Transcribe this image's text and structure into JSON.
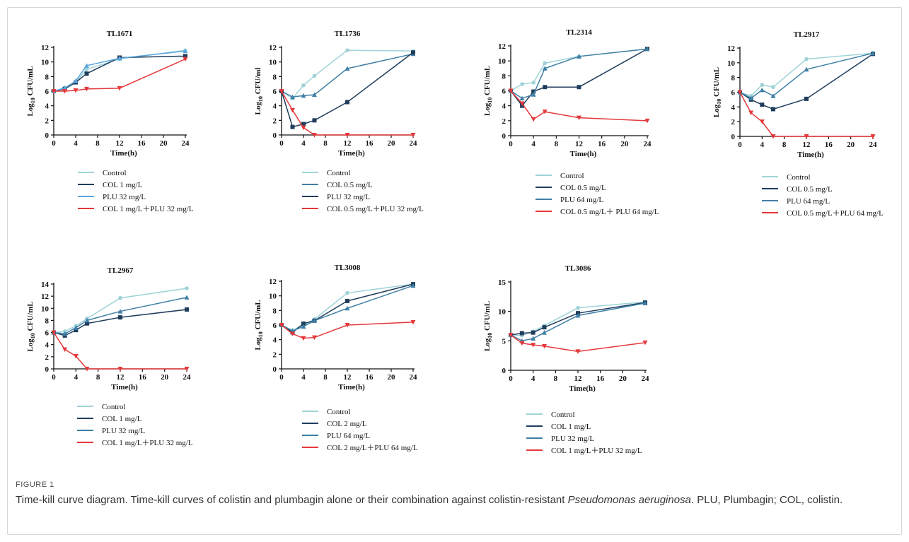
{
  "figure": {
    "label": "FIGURE 1",
    "caption_start": "Time-kill curve diagram. Time-kill curves of colistin and plumbagin alone or their combination against colistin-resistant ",
    "caption_italic": "Pseudomonas aeruginosa",
    "caption_end": ". PLU, Plumbagin; COL, colistin."
  },
  "colors": {
    "control": "#9fd3d8",
    "navy": "#1f3d5c",
    "steel": "#3f7fa6",
    "light_blue": "#5aa6dc",
    "combo": "#e4383b"
  },
  "chart_data": [
    {
      "type": "line",
      "title": "TL1671",
      "xlabel": "Time(h)",
      "ylabel": "Log10 CFU/mL",
      "xlim": [
        0,
        24
      ],
      "xticks": [
        0,
        4,
        8,
        12,
        16,
        20,
        24
      ],
      "ylim": [
        0,
        12
      ],
      "yticks": [
        0,
        2,
        4,
        6,
        8,
        10,
        12
      ],
      "x": [
        0,
        2,
        4,
        6,
        12,
        24
      ],
      "series": [
        {
          "name": "Control",
          "color": "#9fd3d8",
          "marker": "circle",
          "values": [
            6.0,
            6.5,
            7.2,
            9.0,
            10.4,
            11.6
          ]
        },
        {
          "name": "COL 1 mg/L",
          "color": "#1f3d5c",
          "marker": "square",
          "values": [
            6.0,
            6.3,
            7.2,
            8.4,
            10.6,
            10.8
          ]
        },
        {
          "name": "PLU  32 mg/L",
          "color": "#5aa6dc",
          "marker": "triangle",
          "values": [
            6.0,
            6.4,
            7.4,
            9.5,
            10.5,
            11.5
          ]
        },
        {
          "name": "COL 1 mg/L＋PLU 32 mg/L",
          "color": "#e4383b",
          "marker": "triangle-down",
          "values": [
            6.0,
            6.0,
            6.1,
            6.3,
            6.4,
            10.4
          ]
        }
      ],
      "legend": "below"
    },
    {
      "type": "line",
      "title": "TL1736",
      "xlabel": "Time(h)",
      "ylabel": "Log10 CFU/ml",
      "xlim": [
        0,
        24
      ],
      "xticks": [
        0,
        4,
        8,
        12,
        16,
        20,
        24
      ],
      "ylim": [
        0,
        12
      ],
      "yticks": [
        0,
        2,
        4,
        6,
        8,
        10,
        12
      ],
      "x": [
        0,
        2,
        4,
        6,
        12,
        24
      ],
      "series": [
        {
          "name": "Control",
          "color": "#9fd3d8",
          "marker": "circle",
          "values": [
            6.0,
            5.0,
            6.8,
            8.1,
            11.6,
            11.5
          ]
        },
        {
          "name": "COL 0.5 mg/L",
          "color": "#3f7fa6",
          "marker": "triangle",
          "values": [
            6.0,
            5.2,
            5.4,
            5.5,
            9.1,
            11.1
          ]
        },
        {
          "name": "PLU 32 mg/L",
          "color": "#1f3d5c",
          "marker": "square",
          "values": [
            6.0,
            1.1,
            1.5,
            2.0,
            4.5,
            11.3
          ]
        },
        {
          "name": "COL 0.5 mg/L＋PLU 32 mg/L",
          "color": "#e4383b",
          "marker": "triangle-down",
          "values": [
            6.0,
            3.4,
            1.0,
            0.0,
            0.0,
            0.0
          ]
        }
      ],
      "legend": "below"
    },
    {
      "type": "line",
      "title": "TL2314",
      "xlabel": "Time(h)",
      "ylabel": "Log10 CFU/mL",
      "xlim": [
        0,
        24
      ],
      "xticks": [
        0,
        4,
        8,
        12,
        16,
        20,
        24
      ],
      "ylim": [
        0,
        12
      ],
      "yticks": [
        0,
        2,
        4,
        6,
        8,
        10,
        12
      ],
      "x": [
        0,
        2,
        4,
        6,
        12,
        24
      ],
      "series": [
        {
          "name": "Control",
          "color": "#9fd3d8",
          "marker": "circle",
          "values": [
            6.0,
            6.9,
            7.1,
            9.7,
            10.6,
            11.6
          ]
        },
        {
          "name": "COL 0.5 mg/L",
          "color": "#1f3d5c",
          "marker": "square",
          "values": [
            6.0,
            4.0,
            5.9,
            6.5,
            6.5,
            11.6
          ]
        },
        {
          "name": "PLU 64 mg/L",
          "color": "#3f7fa6",
          "marker": "triangle",
          "values": [
            6.0,
            5.0,
            5.5,
            9.0,
            10.6,
            11.6
          ]
        },
        {
          "name": "COL 0.5 mg/L＋ PLU 64 mg/L",
          "color": "#e4383b",
          "marker": "triangle-down",
          "values": [
            6.0,
            4.3,
            2.2,
            3.2,
            2.4,
            2.0
          ]
        }
      ],
      "legend": "below"
    },
    {
      "type": "line",
      "title": "TL2917",
      "xlabel": "Time(h)",
      "ylabel": "Log10 CFU/mL",
      "xlim": [
        0,
        24
      ],
      "xticks": [
        0,
        4,
        8,
        12,
        16,
        20,
        24
      ],
      "ylim": [
        0,
        12
      ],
      "yticks": [
        0,
        2,
        4,
        6,
        8,
        10,
        12
      ],
      "x": [
        0,
        2,
        4,
        6,
        12,
        24
      ],
      "series": [
        {
          "name": "Control",
          "color": "#9fd3d8",
          "marker": "circle",
          "values": [
            6.0,
            5.5,
            7.0,
            6.7,
            10.5,
            11.3
          ]
        },
        {
          "name": "COL 0.5 mg/L",
          "color": "#1f3d5c",
          "marker": "square",
          "values": [
            6.0,
            5.0,
            4.3,
            3.7,
            5.1,
            11.2
          ]
        },
        {
          "name": "PLU 64 mg/L",
          "color": "#3f7fa6",
          "marker": "triangle",
          "values": [
            6.0,
            5.2,
            6.3,
            5.5,
            9.1,
            11.3
          ]
        },
        {
          "name": "COL 0.5 mg/L＋PLU 64 mg/L",
          "color": "#e4383b",
          "marker": "triangle-down",
          "values": [
            6.0,
            3.2,
            2.0,
            0.0,
            0.0,
            0.0
          ]
        }
      ],
      "legend": "below"
    },
    {
      "type": "line",
      "title": "TL2967",
      "xlabel": "Time(h)",
      "ylabel": "Log10 CFU/mL",
      "xlim": [
        0,
        24
      ],
      "xticks": [
        0,
        4,
        8,
        12,
        16,
        20,
        24
      ],
      "ylim": [
        0,
        14
      ],
      "yticks": [
        0,
        2,
        4,
        6,
        8,
        10,
        12,
        14
      ],
      "x": [
        0,
        2,
        4,
        6,
        12,
        24
      ],
      "series": [
        {
          "name": "Control",
          "color": "#9fd3d8",
          "marker": "circle",
          "values": [
            6.0,
            6.2,
            7.1,
            8.3,
            11.7,
            13.3
          ]
        },
        {
          "name": "COL 1 mg/L",
          "color": "#1f3d5c",
          "marker": "square",
          "values": [
            6.0,
            5.5,
            6.4,
            7.5,
            8.5,
            9.8
          ]
        },
        {
          "name": "PLU 32 mg/L",
          "color": "#3f7fa6",
          "marker": "triangle",
          "values": [
            6.0,
            5.8,
            6.8,
            8.0,
            9.5,
            11.8
          ]
        },
        {
          "name": "COL 1 mg/L＋PLU 32 mg/L",
          "color": "#e4383b",
          "marker": "triangle-down",
          "values": [
            6.0,
            3.2,
            2.1,
            0.0,
            0.0,
            0.0
          ]
        }
      ],
      "legend": "below"
    },
    {
      "type": "line",
      "title": "TL3008",
      "xlabel": "Time(h)",
      "ylabel": "Log10 CFU/mL",
      "xlim": [
        0,
        24
      ],
      "xticks": [
        0,
        4,
        8,
        12,
        16,
        20,
        24
      ],
      "ylim": [
        0,
        12
      ],
      "yticks": [
        0,
        2,
        4,
        6,
        8,
        10,
        12
      ],
      "x": [
        0,
        2,
        4,
        6,
        12,
        24
      ],
      "series": [
        {
          "name": "Control",
          "color": "#9fd3d8",
          "marker": "circle",
          "values": [
            6.0,
            5.3,
            6.0,
            6.8,
            10.4,
            11.6
          ]
        },
        {
          "name": "COL 2 mg/L",
          "color": "#1f3d5c",
          "marker": "square",
          "values": [
            6.0,
            5.0,
            6.2,
            6.6,
            9.3,
            11.6
          ]
        },
        {
          "name": "PLU 64 mg/L",
          "color": "#3f7fa6",
          "marker": "triangle",
          "values": [
            6.0,
            5.2,
            5.8,
            6.6,
            8.3,
            11.4
          ]
        },
        {
          "name": "COL 2 mg/L＋PLU 64 mg/L",
          "color": "#e4383b",
          "marker": "triangle-down",
          "values": [
            6.0,
            4.8,
            4.2,
            4.3,
            6.0,
            6.4
          ]
        }
      ],
      "legend": "below"
    },
    {
      "type": "line",
      "title": "TL3086",
      "xlabel": "Time(h)",
      "ylabel": "Log10 CFU/mL",
      "xlim": [
        0,
        24
      ],
      "xticks": [
        0,
        4,
        8,
        12,
        16,
        20,
        24
      ],
      "ylim": [
        0,
        15
      ],
      "yticks": [
        0,
        5,
        10,
        15
      ],
      "x": [
        0,
        2,
        4,
        6,
        12,
        24
      ],
      "series": [
        {
          "name": "Control",
          "color": "#9fd3d8",
          "marker": "circle",
          "values": [
            6.0,
            5.9,
            6.6,
            7.6,
            10.6,
            11.6
          ]
        },
        {
          "name": "COL 1 mg/L",
          "color": "#1f3d5c",
          "marker": "square",
          "values": [
            6.0,
            6.3,
            6.4,
            7.3,
            9.7,
            11.5
          ]
        },
        {
          "name": "PLU 32 mg/L",
          "color": "#3f7fa6",
          "marker": "triangle",
          "values": [
            6.0,
            5.0,
            5.4,
            6.4,
            9.3,
            11.4
          ]
        },
        {
          "name": "COL 1 mg/L＋PLU 32 mg/L",
          "color": "#e4383b",
          "marker": "triangle-down",
          "values": [
            6.0,
            4.6,
            4.3,
            4.1,
            3.2,
            4.7
          ]
        }
      ],
      "legend": "below"
    }
  ]
}
